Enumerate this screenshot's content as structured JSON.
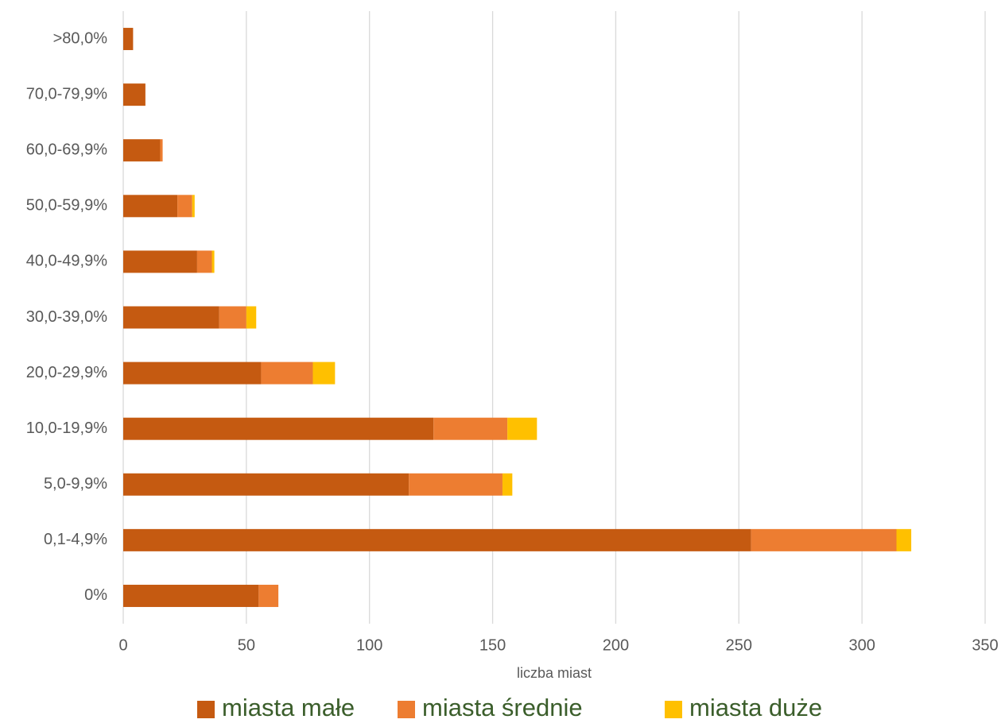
{
  "chart_data": {
    "type": "stacked-bar-horizontal",
    "x_axis_label": "liczba miast",
    "categories": [
      "0%",
      "0,1-4,9%",
      "5,0-9,9%",
      "10,0-19,9%",
      "20,0-29,9%",
      "30,0-39,0%",
      "40,0-49,9%",
      "50,0-59,9%",
      "60,0-69,9%",
      "70,0-79,9%",
      ">80,0%"
    ],
    "series": [
      {
        "name": "miasta małe",
        "color": "#c55a11",
        "values": [
          55,
          255,
          116,
          126,
          56,
          39,
          30,
          22,
          15,
          9,
          4
        ]
      },
      {
        "name": "miasta średnie",
        "color": "#ed7d31",
        "values": [
          8,
          59,
          38,
          30,
          21,
          11,
          6,
          6,
          1,
          0,
          0
        ]
      },
      {
        "name": "miasta duże",
        "color": "#ffc000",
        "values": [
          0,
          6,
          4,
          12,
          9,
          4,
          1,
          1,
          0,
          0,
          0
        ]
      }
    ],
    "xlim": [
      0,
      350
    ],
    "xticks": [
      0,
      50,
      100,
      150,
      200,
      250,
      300,
      350
    ],
    "grid": true,
    "legend": "bottom"
  }
}
